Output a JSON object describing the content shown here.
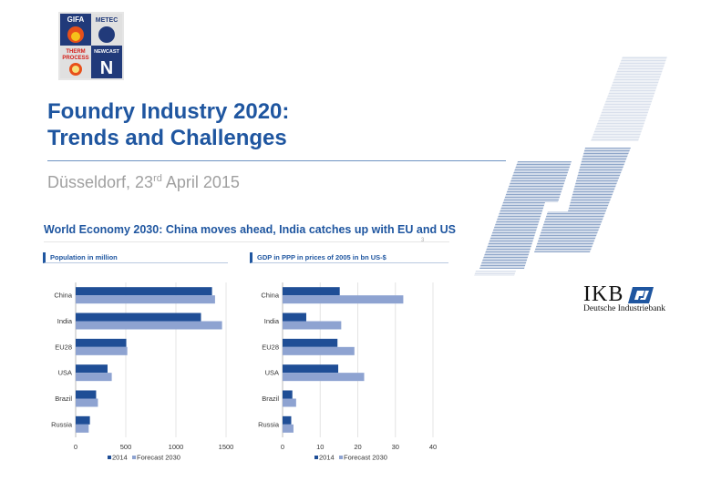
{
  "header": {
    "title_line1": "Foundry Industry 2020:",
    "title_line2": "Trends and Challenges",
    "subtitle_prefix": "Düsseldorf, 23",
    "subtitle_sup": "rd",
    "subtitle_suffix": " April 2015",
    "logo_text": [
      "GIFA",
      "METEC",
      "THERM PROCESS",
      "NEWCAST"
    ]
  },
  "slide": {
    "headline": "World Economy 2030: China moves ahead, India catches up with EU and US",
    "page_number": "3"
  },
  "brand": {
    "name": "IKB",
    "subname": "Deutsche Industriebank"
  },
  "colors": {
    "primary": "#1f56a0",
    "series_2014": "#1f4e96",
    "series_2030": "#8ea3d1"
  },
  "chart_data": [
    {
      "type": "bar",
      "orientation": "horizontal",
      "title": "Population in million",
      "categories": [
        "China",
        "India",
        "EU28",
        "USA",
        "Brazil",
        "Russia"
      ],
      "series": [
        {
          "name": "2014",
          "values": [
            1360,
            1250,
            505,
            318,
            204,
            142
          ]
        },
        {
          "name": "Forecast 2030",
          "values": [
            1390,
            1460,
            515,
            360,
            222,
            130
          ]
        }
      ],
      "xlim": [
        0,
        1500
      ],
      "xticks": [
        0,
        500,
        1000,
        1500
      ],
      "grid": true,
      "legend": "bottom"
    },
    {
      "type": "bar",
      "orientation": "horizontal",
      "title": "GDP in PPP in prices of 2005 in bn US-$",
      "categories": [
        "China",
        "India",
        "EU28",
        "USA",
        "Brazil",
        "Russia"
      ],
      "series": [
        {
          "name": "2014",
          "values": [
            15.2,
            6.3,
            14.6,
            14.8,
            2.6,
            2.3
          ]
        },
        {
          "name": "Forecast 2030",
          "values": [
            32.1,
            15.6,
            19.1,
            21.7,
            3.6,
            2.9
          ]
        }
      ],
      "xlim": [
        0,
        40
      ],
      "xticks": [
        0,
        10,
        20,
        30,
        40
      ],
      "grid": true,
      "legend": "bottom"
    }
  ]
}
